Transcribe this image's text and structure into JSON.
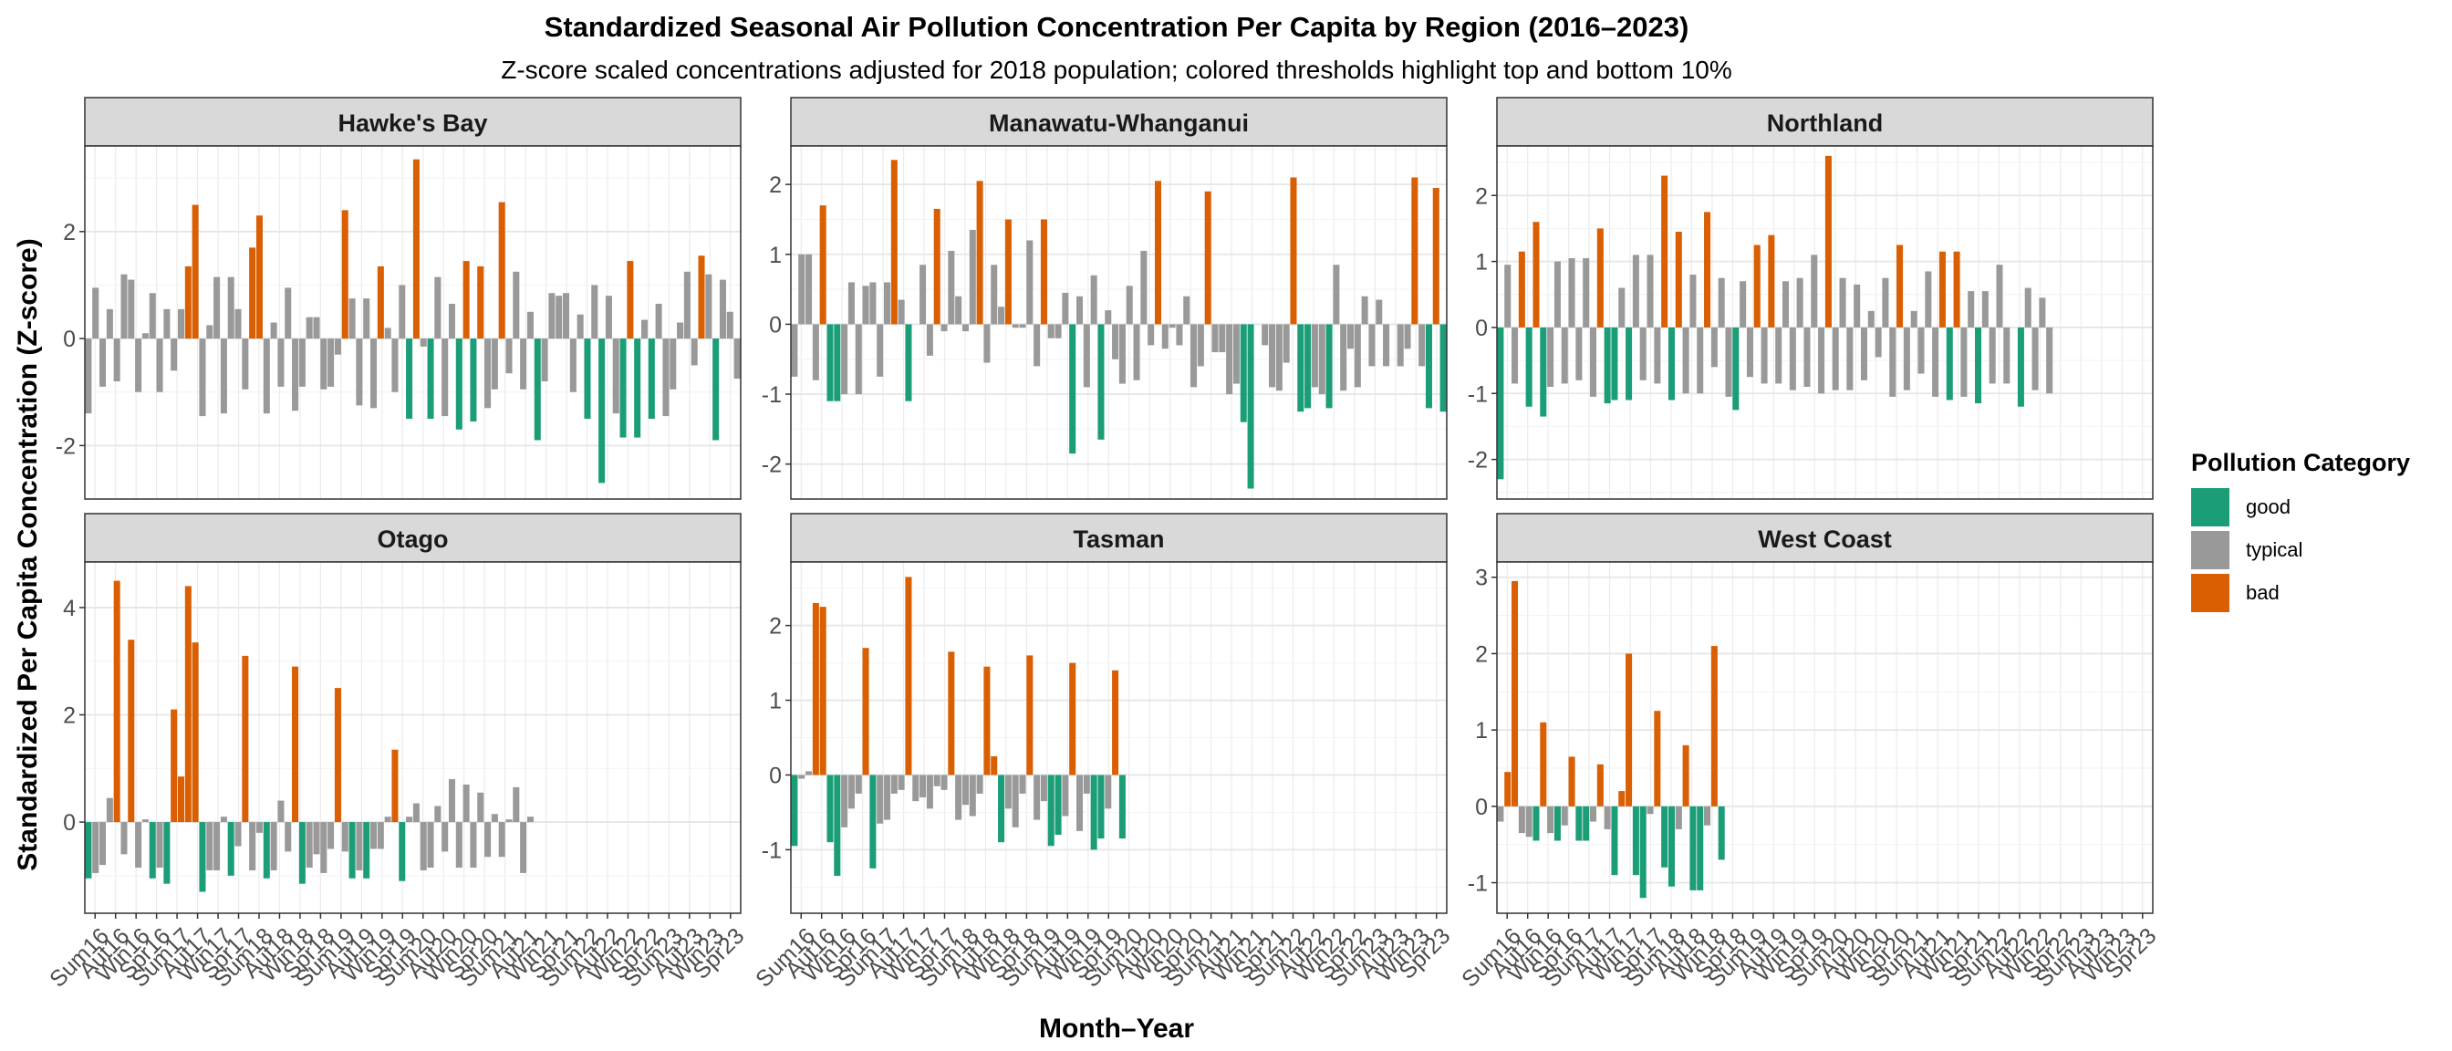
{
  "title": "Standardized Seasonal Air Pollution Concentration Per Capita by Region (2016–2023)",
  "subtitle": "Z-score scaled concentrations adjusted for 2018 population; colored thresholds highlight top and bottom 10%",
  "colors": {
    "good": "#1b9e77",
    "typical": "#999999",
    "bad": "#d95f02"
  },
  "chart_data": {
    "type": "bar",
    "xlabel": "Month–Year",
    "ylabel": "Standardized Per Capita Concentration (Z-score)",
    "x_tick_labels": [
      "Sum16",
      "Aut16",
      "Win16",
      "Spr16",
      "Sum17",
      "Aut17",
      "Win17",
      "Spr17",
      "Sum18",
      "Aut18",
      "Win18",
      "Spr18",
      "Sum19",
      "Aut19",
      "Win19",
      "Spr19",
      "Sum20",
      "Aut20",
      "Win20",
      "Spr20",
      "Sum21",
      "Aut21",
      "Win21",
      "Spr21",
      "Sum22",
      "Aut22",
      "Win22",
      "Spr22",
      "Sum23",
      "Aut23",
      "Win23",
      "Spr23"
    ],
    "legend": {
      "title": "Pollution Category",
      "position": "right",
      "entries": [
        {
          "key": "good",
          "label": "good"
        },
        {
          "key": "typical",
          "label": "typical"
        },
        {
          "key": "bad",
          "label": "bad"
        }
      ]
    },
    "grid": true,
    "panels": [
      {
        "name": "Hawke's Bay",
        "yticks": [
          -2,
          0,
          2
        ],
        "ylim": [
          -3.0,
          3.6
        ],
        "series": [
          [
            -1.4,
            0.95,
            -0.9,
            0.55,
            -0.8,
            1.2,
            1.1,
            -1.0,
            0.1,
            0.85,
            -1.0,
            0.55,
            -0.6,
            0.55,
            1.35,
            2.5
          ],
          [
            -1.45,
            0.25,
            1.15,
            -1.4,
            1.15,
            0.55,
            -0.95,
            1.7,
            2.3,
            -1.4,
            0.3,
            -0.9,
            0.95,
            -1.35,
            -0.9,
            0.4
          ],
          [
            0.4,
            -0.95,
            -0.9,
            -0.3,
            2.4,
            0.75,
            -1.25,
            0.75,
            -1.3,
            1.35,
            0.2,
            -1.0,
            1.0,
            -1.5,
            3.35,
            -0.15
          ],
          [
            -1.5,
            1.15,
            -1.45,
            0.65,
            -1.7,
            1.45,
            -1.55,
            1.35,
            -1.3,
            -0.95,
            2.55,
            -0.65,
            1.25,
            -0.95,
            0.5,
            -1.9
          ],
          [
            -0.8,
            0.85,
            0.8,
            0.85,
            -1.0,
            0.45,
            -1.5,
            1.0,
            -2.7,
            0.8,
            -1.4,
            -1.85,
            1.45,
            -1.85,
            0.35,
            -1.5
          ],
          [
            0.65,
            -1.45,
            -0.95,
            0.3,
            1.25,
            -0.5,
            1.55,
            1.2,
            -1.9,
            1.1,
            0.5,
            -0.75
          ]
        ]
      },
      {
        "name": "Manawatu-Whanganui",
        "yticks": [
          -2,
          -1,
          0,
          1,
          2
        ],
        "ylim": [
          -2.5,
          2.55
        ],
        "series": [
          [
            -0.75,
            1.0,
            1.0,
            -0.8,
            1.7,
            -1.1,
            -1.1,
            -1.0,
            0.6,
            -1.0,
            0.55,
            0.6,
            -0.75,
            0.6,
            2.35,
            0.35
          ],
          [
            -1.1,
            0.0,
            0.85,
            -0.45,
            1.65,
            -0.1,
            1.05,
            0.4,
            -0.1,
            1.35,
            2.05,
            -0.55,
            0.85,
            0.25,
            1.5,
            -0.05
          ],
          [
            -0.05,
            1.2,
            -0.6,
            1.5,
            -0.2,
            -0.2,
            0.45,
            -1.85,
            0.4,
            -0.9,
            0.7,
            -1.65,
            0.2,
            -0.5,
            -0.85,
            0.55
          ],
          [
            -0.8,
            1.05,
            -0.3,
            2.05,
            -0.35,
            -0.05,
            -0.3,
            0.4,
            -0.9,
            -0.6,
            1.9,
            -0.4,
            -0.4,
            -1.0,
            -0.85,
            -1.4
          ],
          [
            -2.35,
            0.0,
            -0.3,
            -0.9,
            -0.95,
            -0.55,
            2.1,
            -1.25,
            -1.2,
            -0.9,
            -1.0,
            -1.2,
            0.85,
            -0.95,
            -0.35,
            -0.9
          ],
          [
            0.4,
            -0.6,
            0.35,
            -0.6,
            0.0,
            -0.6,
            -0.35,
            2.1,
            -0.6,
            -1.2,
            1.95,
            -1.25
          ]
        ]
      },
      {
        "name": "Northland",
        "yticks": [
          -2,
          -1,
          0,
          1,
          2
        ],
        "ylim": [
          -2.6,
          2.75
        ],
        "series": [
          [
            -2.3,
            0.95,
            -0.85,
            1.15,
            -1.2,
            1.6,
            -1.35,
            -0.9,
            1.0,
            -0.85,
            1.05,
            -0.8,
            1.05,
            -1.05,
            1.5,
            -1.15
          ],
          [
            -1.1,
            0.6,
            -1.1,
            1.1,
            -0.8,
            1.1,
            -0.85,
            2.3,
            -1.1,
            1.45,
            -1.0,
            0.8,
            -1.0,
            1.75,
            -0.6,
            0.75
          ],
          [
            -1.05,
            -1.25,
            0.7,
            -0.75,
            1.25,
            -0.85,
            1.4,
            -0.85,
            0.7,
            -0.95,
            0.75,
            -0.9,
            1.1,
            -1.0,
            2.6,
            -0.95
          ],
          [
            0.75,
            -0.95,
            0.65,
            -0.8,
            0.25,
            -0.45,
            0.75,
            -1.05,
            1.25,
            -0.95,
            0.25,
            -0.7,
            0.85,
            -1.05,
            1.15,
            -1.1
          ],
          [
            1.15,
            -1.05,
            0.55,
            -1.15,
            0.55,
            -0.85,
            0.95,
            -0.85,
            0.0,
            -1.2,
            0.6,
            -0.95,
            0.45,
            -1.0,
            0.0,
            0.0
          ],
          [
            0.0,
            0.0,
            0.0,
            0.0,
            0.0,
            0.0,
            0.0,
            0.0,
            0.0,
            0.0,
            0.0,
            0.0
          ]
        ]
      },
      {
        "name": "Otago",
        "yticks": [
          0,
          2,
          4
        ],
        "ylim": [
          -1.7,
          4.85
        ],
        "series": [
          [
            -1.05,
            -0.95,
            -0.8,
            0.45,
            4.5,
            -0.6,
            3.4,
            -0.85,
            0.05,
            -1.05,
            -0.85,
            -1.15,
            2.1,
            0.85,
            4.4,
            3.35
          ],
          [
            -1.3,
            -0.9,
            -0.9,
            0.1,
            -1.0,
            -0.45,
            3.1,
            -0.9,
            -0.2,
            -1.05,
            -0.9,
            0.4,
            -0.55,
            2.9,
            -1.15,
            -0.85
          ],
          [
            -0.6,
            -0.95,
            -0.5,
            2.5,
            -0.55,
            -1.05,
            -0.9,
            -1.05,
            -0.5,
            -0.5,
            0.1,
            1.35,
            -1.1,
            0.1,
            0.35,
            -0.9
          ],
          [
            -0.85,
            0.3,
            -0.55,
            0.8,
            -0.85,
            0.7,
            -0.85,
            0.55,
            -0.65,
            0.15,
            -0.65,
            0.05,
            0.65,
            -0.95,
            0.1,
            0.0
          ],
          [
            0.0,
            0.0,
            0.0,
            0.0,
            0.0,
            0.0,
            0.0,
            0.0,
            0.0,
            0.0,
            0.0,
            0.0,
            0.0,
            0.0,
            0.0,
            0.0
          ],
          [
            0.0,
            0.0,
            0.0,
            0.0,
            0.0,
            0.0,
            0.0,
            0.0,
            0.0,
            0.0,
            0.0,
            0.0
          ]
        ]
      },
      {
        "name": "Tasman",
        "yticks": [
          -1,
          0,
          1,
          2
        ],
        "ylim": [
          -1.85,
          2.85
        ],
        "series": [
          [
            -0.95,
            -0.05,
            0.05,
            2.3,
            2.25,
            -0.9,
            -1.35,
            -0.7,
            -0.45,
            -0.25,
            1.7,
            -1.25,
            -0.65,
            -0.6,
            -0.25,
            -0.2
          ],
          [
            2.65,
            -0.35,
            -0.3,
            -0.45,
            -0.15,
            -0.2,
            1.65,
            -0.6,
            -0.4,
            -0.55,
            -0.25,
            1.45,
            0.25,
            -0.9,
            -0.45,
            -0.7
          ],
          [
            -0.25,
            1.6,
            -0.6,
            -0.35,
            -0.95,
            -0.8,
            -0.55,
            1.5,
            -0.75,
            -0.25,
            -1.0,
            -0.85,
            -0.45,
            1.4,
            -0.85,
            0.0
          ],
          [
            0.0,
            0.0,
            0.0,
            0.0,
            0.0,
            0.0,
            0.0,
            0.0,
            0.0,
            0.0,
            0.0,
            0.0,
            0.0,
            0.0,
            0.0,
            0.0
          ],
          [
            0.0,
            0.0,
            0.0,
            0.0,
            0.0,
            0.0,
            0.0,
            0.0,
            0.0,
            0.0,
            0.0,
            0.0,
            0.0,
            0.0,
            0.0,
            0.0
          ],
          [
            0.0,
            0.0,
            0.0,
            0.0,
            0.0,
            0.0,
            0.0,
            0.0,
            0.0,
            0.0,
            0.0,
            0.0
          ]
        ]
      },
      {
        "name": "West Coast",
        "yticks": [
          -1,
          0,
          1,
          2,
          3
        ],
        "ylim": [
          -1.4,
          3.2
        ],
        "series": [
          [
            -0.2,
            0.45,
            2.95,
            -0.35,
            -0.4,
            -0.45,
            1.1,
            -0.35,
            -0.45,
            -0.25,
            0.65,
            -0.45,
            -0.45,
            -0.2,
            0.55,
            -0.3
          ],
          [
            -0.9,
            0.2,
            2.0,
            -0.9,
            -1.2,
            -0.1,
            1.25,
            -0.8,
            -1.05,
            -0.3,
            0.8,
            -1.1,
            -1.1,
            -0.25,
            2.1,
            -0.7
          ],
          [
            0.0,
            0.0,
            0.0,
            0.0,
            0.0,
            0.0,
            0.0,
            0.0,
            0.0,
            0.0,
            0.0,
            0.0,
            0.0,
            0.0,
            0.0,
            0.0
          ],
          [
            0.0,
            0.0,
            0.0,
            0.0,
            0.0,
            0.0,
            0.0,
            0.0,
            0.0,
            0.0,
            0.0,
            0.0,
            0.0,
            0.0,
            0.0,
            0.0
          ],
          [
            0.0,
            0.0,
            0.0,
            0.0,
            0.0,
            0.0,
            0.0,
            0.0,
            0.0,
            0.0,
            0.0,
            0.0,
            0.0,
            0.0,
            0.0,
            0.0
          ],
          [
            0.0,
            0.0,
            0.0,
            0.0,
            0.0,
            0.0,
            0.0,
            0.0,
            0.0,
            0.0,
            0.0,
            0.0
          ]
        ]
      }
    ]
  }
}
